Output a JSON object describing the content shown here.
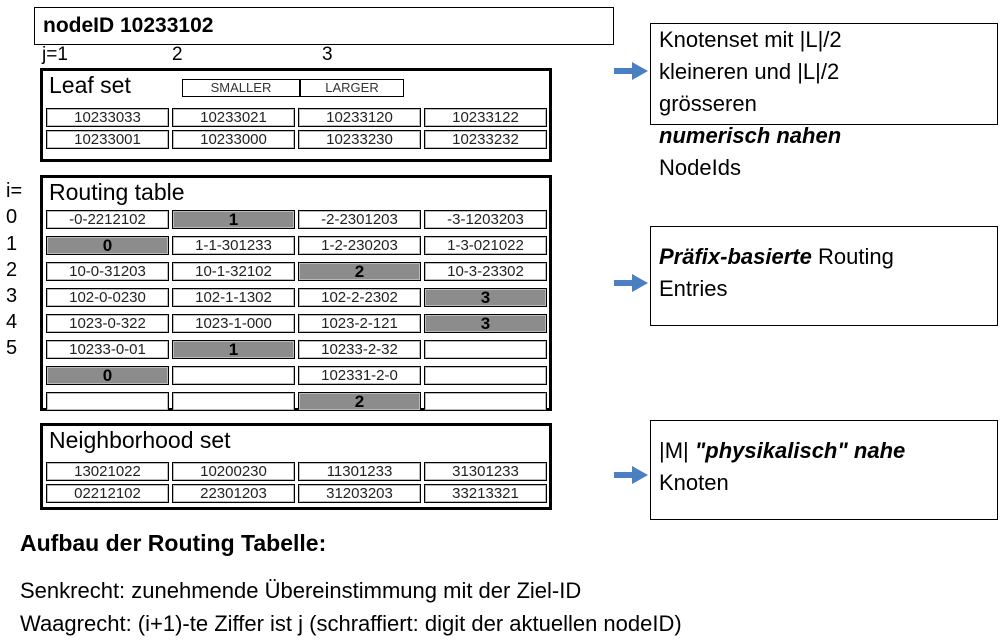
{
  "node_id": "nodeID 10233102",
  "column_labels": [
    "j=1",
    "2",
    "3"
  ],
  "row_labels": [
    "i=",
    "0",
    "1",
    "2",
    "3",
    "4",
    "5"
  ],
  "leaf_set": {
    "title": "Leaf set",
    "smaller_label": "SMALLER",
    "larger_label": "LARGER",
    "rows": [
      [
        "10233033",
        "10233021",
        "10233120",
        "10233122"
      ],
      [
        "10233001",
        "10233000",
        "10233230",
        "10233232"
      ]
    ]
  },
  "routing_table": {
    "title": "Routing table",
    "rows": [
      [
        {
          "t": "-0-2212102",
          "s": false
        },
        {
          "t": "1",
          "s": true
        },
        {
          "t": "-2-2301203",
          "s": false
        },
        {
          "t": "-3-1203203",
          "s": false
        }
      ],
      [
        {
          "t": "0",
          "s": true
        },
        {
          "t": "1-1-301233",
          "s": false
        },
        {
          "t": "1-2-230203",
          "s": false
        },
        {
          "t": "1-3-021022",
          "s": false
        }
      ],
      [
        {
          "t": "10-0-31203",
          "s": false
        },
        {
          "t": "10-1-32102",
          "s": false
        },
        {
          "t": "2",
          "s": true
        },
        {
          "t": "10-3-23302",
          "s": false
        }
      ],
      [
        {
          "t": "102-0-0230",
          "s": false
        },
        {
          "t": "102-1-1302",
          "s": false
        },
        {
          "t": "102-2-2302",
          "s": false
        },
        {
          "t": "3",
          "s": true
        }
      ],
      [
        {
          "t": "1023-0-322",
          "s": false
        },
        {
          "t": "1023-1-000",
          "s": false
        },
        {
          "t": "1023-2-121",
          "s": false
        },
        {
          "t": "3",
          "s": true
        }
      ],
      [
        {
          "t": "10233-0-01",
          "s": false
        },
        {
          "t": "1",
          "s": true
        },
        {
          "t": "10233-2-32",
          "s": false
        },
        {
          "t": "",
          "s": false
        }
      ],
      [
        {
          "t": "0",
          "s": true
        },
        {
          "t": "",
          "s": false
        },
        {
          "t": "102331-2-0",
          "s": false
        },
        {
          "t": "",
          "s": false
        }
      ],
      [
        {
          "t": "",
          "s": false
        },
        {
          "t": "",
          "s": false
        },
        {
          "t": "2",
          "s": true
        },
        {
          "t": "",
          "s": false
        }
      ]
    ]
  },
  "neighborhood_set": {
    "title": "Neighborhood set",
    "rows": [
      [
        "13021022",
        "10200230",
        "11301233",
        "31301233"
      ],
      [
        "02212102",
        "22301203",
        "31203203",
        "33213321"
      ]
    ]
  },
  "callouts": {
    "leaf": {
      "line1": "Knotenset mit |L|/2",
      "line2": "kleineren und |L|/2",
      "line3": "grösseren",
      "line4": "numerisch nahen",
      "line5": "NodeIds"
    },
    "routing": {
      "emph": "Präfix-basierte",
      "rest": " Routing",
      "line2": "Entries"
    },
    "neighbor": {
      "pre": "|M| ",
      "emph": "\"physikalisch\" nahe",
      "line2": "Knoten"
    }
  },
  "heading": "Aufbau der Routing Tabelle:",
  "description": [
    "Senkrecht: zunehmende Übereinstimmung mit der Ziel-ID",
    "Waagrecht: (i+1)-te Ziffer ist j (schraffiert: digit der aktuellen nodeID)"
  ],
  "colors": {
    "shaded_cell": "#8c8c8c",
    "arrow": "#4a7fc1"
  }
}
